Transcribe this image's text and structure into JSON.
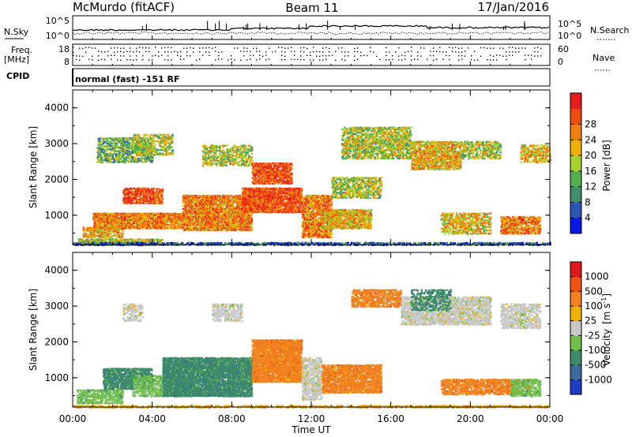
{
  "header": {
    "station": "McMurdo (fitACF)",
    "beam": "Beam 11",
    "date": "17/Jan/2016"
  },
  "noise_panel": {
    "left_label": "N.Sky",
    "right_label": "N.Search",
    "left_ticks": [
      "10^5",
      "10^0"
    ],
    "right_ticks": [
      "10^5",
      "10^0"
    ]
  },
  "freq_panel": {
    "left_label": "Freq.",
    "left_unit": "[MHz]",
    "right_label": "Nave",
    "left_ticks": [
      "18",
      "8"
    ],
    "right_ticks": [
      "60",
      "0"
    ]
  },
  "cpid_panel": {
    "label": "CPID",
    "value": "normal (fast) -151 RF"
  },
  "chart_data": [
    {
      "type": "heatmap",
      "name": "power",
      "ylabel": "Slant Range [km]",
      "xlabel": "",
      "xlim": [
        "00:00",
        "24:00"
      ],
      "ylim": [
        180,
        4500
      ],
      "y_ticks": [
        "1000",
        "2000",
        "3000",
        "4000"
      ],
      "colorbar": {
        "label": "Power [dB]",
        "ticks": [
          "4",
          "8",
          "12",
          "16",
          "20",
          "24",
          "28"
        ],
        "colors": [
          "#0a18e6",
          "#2a56b8",
          "#3f8f6f",
          "#52b04c",
          "#a8d22f",
          "#f0b000",
          "#f07f10",
          "#f04b10",
          "#e81c1c"
        ]
      }
    },
    {
      "type": "heatmap",
      "name": "velocity",
      "ylabel": "Slant Range [km]",
      "xlabel": "Time UT",
      "xlim": [
        "00:00",
        "24:00"
      ],
      "ylim": [
        180,
        4500
      ],
      "x_ticks": [
        "00:00",
        "04:00",
        "08:00",
        "12:00",
        "16:00",
        "20:00",
        "00:00"
      ],
      "y_ticks": [
        "1000",
        "2000",
        "3000",
        "4000"
      ],
      "colorbar": {
        "label": "Velocity",
        "unit_main": "[m s",
        "unit_sup": "-1",
        "unit_end": "]",
        "ticks": [
          "1000",
          "500",
          "100",
          "25",
          "-25",
          "-100",
          "-500",
          "-1000"
        ],
        "colors": [
          "#1c3cc4",
          "#3d6a9e",
          "#3b8a6a",
          "#6ec04a",
          "#c8c8c8",
          "#f0b000",
          "#f08020",
          "#f05010",
          "#e01818"
        ]
      }
    }
  ]
}
